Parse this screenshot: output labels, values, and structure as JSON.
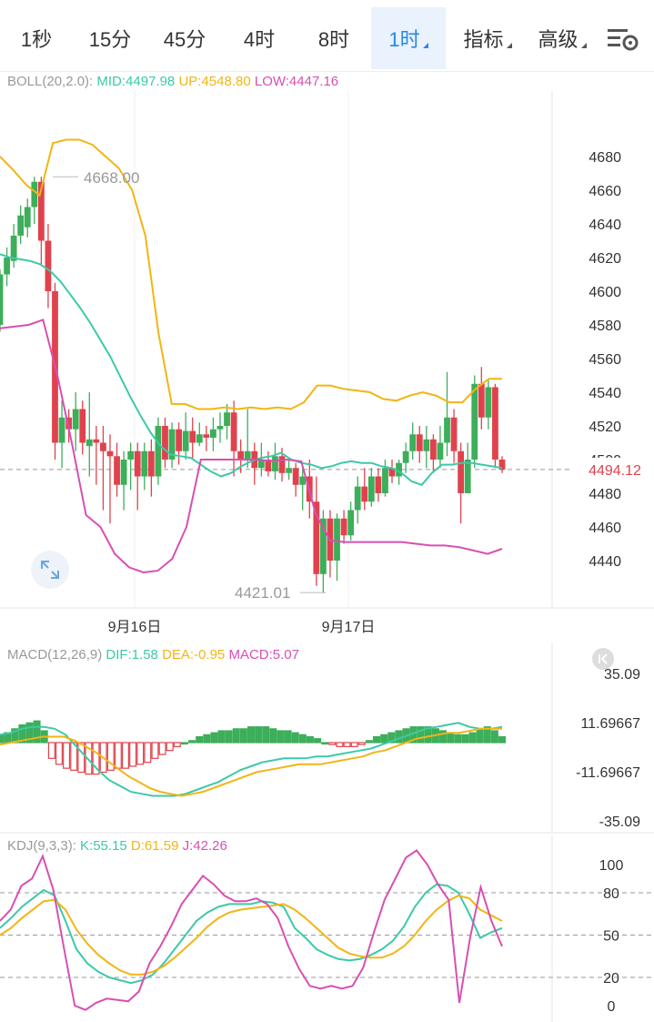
{
  "tabs": [
    {
      "label": "1秒",
      "active": false,
      "dropdown": false
    },
    {
      "label": "15分",
      "active": false,
      "dropdown": false
    },
    {
      "label": "45分",
      "active": false,
      "dropdown": false
    },
    {
      "label": "4时",
      "active": false,
      "dropdown": false
    },
    {
      "label": "8时",
      "active": false,
      "dropdown": false
    },
    {
      "label": "1时",
      "active": true,
      "dropdown": true
    },
    {
      "label": "指标",
      "active": false,
      "dropdown": true
    },
    {
      "label": "高级",
      "active": false,
      "dropdown": true
    }
  ],
  "icons": {
    "settings": "chart-settings-icon",
    "expand": "expand-icon",
    "collapse": "collapse-left-icon"
  },
  "colors": {
    "up": "#3dae5a",
    "down": "#e0424d",
    "mid": "#3cc9a9",
    "upper": "#f2b515",
    "lower": "#d84fb3",
    "accent": "#2a86e0",
    "last_price": "#e0424d"
  },
  "boll": {
    "name": "BOLL(20,2.0):",
    "mid": "MID:4497.98",
    "up": "UP:4548.80",
    "low": "LOW:4447.16"
  },
  "macd": {
    "name": "MACD(12,26,9)",
    "dif": "DIF:1.58",
    "dea": "DEA:-0.95",
    "macd": "MACD:5.07"
  },
  "kdj": {
    "name": "KDJ(9,3,3):",
    "k": "K:55.15",
    "d": "D:61.59",
    "j": "J:42.26"
  },
  "last_price_label": "4494.12",
  "max_label": "4668.00",
  "min_label": "4421.01",
  "chart_data": [
    {
      "type": "candlestick",
      "title": "BOLL(20,2.0)",
      "x_tick_labels": [
        "9月16日",
        "9月17日"
      ],
      "y_ticks": [
        4440,
        4460,
        4480,
        4500,
        4520,
        4540,
        4560,
        4580,
        4600,
        4620,
        4640,
        4660,
        4680
      ],
      "ylim": [
        4414,
        4705
      ],
      "last_price": 4494.12,
      "annotations": [
        {
          "text": "4668.00",
          "value": 4668.0
        },
        {
          "text": "4421.01",
          "value": 4421.01
        }
      ],
      "candles": [
        [
          4580,
          4610,
          4576,
          4613
        ],
        [
          4610,
          4620,
          4603,
          4626
        ],
        [
          4618,
          4633,
          4614,
          4640
        ],
        [
          4633,
          4645,
          4628,
          4651
        ],
        [
          4638,
          4650,
          4632,
          4655
        ],
        [
          4650,
          4665,
          4640,
          4668
        ],
        [
          4665,
          4630,
          4615,
          4668
        ],
        [
          4630,
          4600,
          4590,
          4640
        ],
        [
          4600,
          4510,
          4500,
          4605
        ],
        [
          4510,
          4525,
          4495,
          4535
        ],
        [
          4525,
          4518,
          4510,
          4530
        ],
        [
          4518,
          4530,
          4505,
          4540
        ],
        [
          4530,
          4510,
          4503,
          4535
        ],
        [
          4508,
          4512,
          4490,
          4540
        ],
        [
          4512,
          4510,
          4485,
          4520
        ],
        [
          4510,
          4505,
          4470,
          4520
        ],
        [
          4505,
          4502,
          4462,
          4515
        ],
        [
          4502,
          4485,
          4478,
          4510
        ],
        [
          4485,
          4500,
          4470,
          4505
        ],
        [
          4500,
          4505,
          4482,
          4510
        ],
        [
          4505,
          4490,
          4470,
          4510
        ],
        [
          4490,
          4505,
          4482,
          4510
        ],
        [
          4505,
          4490,
          4478,
          4512
        ],
        [
          4490,
          4520,
          4485,
          4525
        ],
        [
          4520,
          4500,
          4495,
          4525
        ],
        [
          4500,
          4518,
          4495,
          4522
        ],
        [
          4518,
          4505,
          4497,
          4522
        ],
        [
          4505,
          4517,
          4500,
          4528
        ],
        [
          4517,
          4510,
          4500,
          4525
        ],
        [
          4510,
          4515,
          4508,
          4522
        ],
        [
          4515,
          4513,
          4505,
          4520
        ],
        [
          4513,
          4518,
          4505,
          4525
        ],
        [
          4518,
          4520,
          4510,
          4528
        ],
        [
          4520,
          4528,
          4512,
          4533
        ],
        [
          4528,
          4505,
          4490,
          4535
        ],
        [
          4505,
          4500,
          4492,
          4512
        ],
        [
          4500,
          4505,
          4495,
          4530
        ],
        [
          4505,
          4495,
          4485,
          4510
        ],
        [
          4495,
          4500,
          4490,
          4510
        ],
        [
          4500,
          4493,
          4490,
          4505
        ],
        [
          4493,
          4502,
          4488,
          4510
        ],
        [
          4502,
          4492,
          4487,
          4507
        ],
        [
          4492,
          4495,
          4488,
          4500
        ],
        [
          4495,
          4485,
          4478,
          4498
        ],
        [
          4485,
          4490,
          4470,
          4496
        ],
        [
          4490,
          4475,
          4465,
          4500
        ],
        [
          4475,
          4432,
          4425,
          4490
        ],
        [
          4432,
          4465,
          4421,
          4470
        ],
        [
          4465,
          4440,
          4430,
          4470
        ],
        [
          4440,
          4465,
          4428,
          4468
        ],
        [
          4465,
          4455,
          4450,
          4470
        ],
        [
          4455,
          4470,
          4452,
          4475
        ],
        [
          4470,
          4484,
          4462,
          4490
        ],
        [
          4484,
          4475,
          4470,
          4495
        ],
        [
          4475,
          4490,
          4472,
          4495
        ],
        [
          4490,
          4480,
          4475,
          4495
        ],
        [
          4480,
          4495,
          4478,
          4500
        ],
        [
          4495,
          4490,
          4486,
          4500
        ],
        [
          4490,
          4498,
          4485,
          4500
        ],
        [
          4498,
          4505,
          4492,
          4510
        ],
        [
          4505,
          4515,
          4500,
          4522
        ],
        [
          4515,
          4505,
          4498,
          4520
        ],
        [
          4505,
          4512,
          4495,
          4520
        ],
        [
          4512,
          4500,
          4492,
          4515
        ],
        [
          4500,
          4510,
          4495,
          4520
        ],
        [
          4510,
          4525,
          4502,
          4552
        ],
        [
          4525,
          4505,
          4498,
          4530
        ],
        [
          4505,
          4480,
          4462,
          4510
        ],
        [
          4480,
          4500,
          4480,
          4510
        ],
        [
          4500,
          4545,
          4495,
          4550
        ],
        [
          4545,
          4525,
          4518,
          4555
        ],
        [
          4525,
          4543,
          4518,
          4548
        ],
        [
          4543,
          4500,
          4495,
          4545
        ],
        [
          4500,
          4494,
          4492,
          4502
        ]
      ],
      "series": [
        {
          "name": "MID",
          "values": [
            4622,
            4620,
            4619,
            4618,
            4616,
            4612,
            4606,
            4598,
            4590,
            4581,
            4571,
            4561,
            4549,
            4537,
            4526,
            4516,
            4508,
            4503,
            4502,
            4501,
            4497,
            4493,
            4490,
            4492,
            4496,
            4499,
            4501,
            4502,
            4504,
            4500,
            4498,
            4497,
            4495,
            4496,
            4498,
            4499,
            4498,
            4498,
            4496,
            4495,
            4492,
            4487,
            4485,
            4492,
            4497,
            4497,
            4498,
            4498,
            4497,
            4496,
            4495
          ]
        },
        {
          "name": "UP",
          "values": [
            4680,
            4672,
            4663,
            4657,
            4688,
            4690,
            4690,
            4687,
            4680,
            4673,
            4660,
            4633,
            4575,
            4533,
            4533,
            4530,
            4530,
            4531,
            4530,
            4531,
            4530,
            4531,
            4530,
            4534,
            4544,
            4544,
            4542,
            4541,
            4540,
            4536,
            4535,
            4538,
            4540,
            4538,
            4534,
            4534,
            4542,
            4548,
            4548
          ]
        },
        {
          "name": "LOW",
          "values": [
            4578,
            4579,
            4580,
            4583,
            4550,
            4510,
            4467,
            4460,
            4444,
            4436,
            4433,
            4434,
            4441,
            4460,
            4500,
            4500,
            4500,
            4500,
            4500,
            4499,
            4500,
            4499,
            4468,
            4452,
            4451,
            4451,
            4451,
            4451,
            4451,
            4450,
            4449,
            4449,
            4448,
            4446,
            4444,
            4447
          ]
        }
      ]
    },
    {
      "type": "bar",
      "title": "MACD(12,26,9)",
      "y_ticks": [
        35.09,
        11.69667,
        -11.69667,
        -35.09
      ],
      "ylim": [
        -35.09,
        35.09
      ],
      "histogram": [
        4,
        5,
        7,
        9,
        10,
        11,
        6,
        -8,
        -11,
        -13,
        -14,
        -15,
        -16,
        -16,
        -15,
        -14,
        -13,
        -13,
        -12,
        -11,
        -10,
        -8,
        -6,
        -4,
        -2,
        0,
        1,
        3,
        4,
        5,
        6,
        6,
        7,
        7,
        8,
        8,
        8,
        7,
        6,
        6,
        5,
        4,
        3,
        2,
        0,
        -1,
        -2,
        -2,
        -2,
        -1,
        1,
        3,
        4,
        5,
        6,
        7,
        8,
        8,
        8,
        7,
        6,
        5,
        4,
        4,
        5,
        7,
        8,
        6,
        3
      ],
      "series": [
        {
          "name": "DIF",
          "values": [
            4,
            5,
            7,
            8,
            8,
            7,
            4,
            -2,
            -8,
            -14,
            -19,
            -22,
            -25,
            -26,
            -27,
            -27,
            -27,
            -26,
            -24,
            -22,
            -20,
            -17,
            -14,
            -12,
            -10,
            -9,
            -8,
            -8,
            -8,
            -7,
            -7,
            -6,
            -5,
            -4,
            -3,
            -1,
            1,
            3,
            5,
            7,
            8,
            9,
            10,
            8,
            7,
            7,
            8
          ]
        },
        {
          "name": "DEA",
          "values": [
            -1,
            0,
            1,
            2,
            3,
            3,
            3,
            1,
            -2,
            -5,
            -9,
            -13,
            -17,
            -20,
            -23,
            -25,
            -26,
            -27,
            -26,
            -25,
            -23,
            -21,
            -19,
            -17,
            -15,
            -14,
            -13,
            -12,
            -11,
            -11,
            -11,
            -10,
            -9,
            -8,
            -7,
            -5,
            -4,
            -2,
            0,
            2,
            3,
            4,
            5,
            5,
            6,
            7,
            7,
            7
          ]
        }
      ]
    },
    {
      "type": "line",
      "title": "KDJ(9,3,3)",
      "y_ticks": [
        100,
        80,
        50,
        20,
        0
      ],
      "ylim": [
        -5,
        112
      ],
      "series": [
        {
          "name": "K",
          "values": [
            55,
            62,
            70,
            76,
            82,
            78,
            60,
            40,
            30,
            24,
            20,
            18,
            16,
            18,
            22,
            30,
            40,
            50,
            60,
            66,
            70,
            72,
            72,
            72,
            74,
            73,
            70,
            55,
            48,
            40,
            36,
            33,
            32,
            33,
            36,
            40,
            46,
            56,
            70,
            80,
            86,
            85,
            80,
            65,
            48,
            52,
            55
          ]
        },
        {
          "name": "D",
          "values": [
            50,
            55,
            62,
            68,
            74,
            75,
            68,
            54,
            44,
            36,
            30,
            25,
            22,
            22,
            24,
            28,
            34,
            41,
            48,
            56,
            62,
            66,
            68,
            69,
            70,
            71,
            72,
            68,
            62,
            55,
            48,
            41,
            37,
            35,
            34,
            34,
            37,
            42,
            50,
            60,
            68,
            74,
            78,
            76,
            68,
            64,
            60
          ]
        },
        {
          "name": "J",
          "values": [
            60,
            68,
            85,
            90,
            106,
            82,
            40,
            0,
            -3,
            2,
            5,
            4,
            3,
            10,
            30,
            42,
            56,
            72,
            82,
            92,
            86,
            78,
            74,
            74,
            76,
            72,
            62,
            42,
            26,
            14,
            12,
            14,
            12,
            14,
            27,
            52,
            75,
            90,
            105,
            110,
            100,
            86,
            75,
            2,
            48,
            84,
            60,
            42
          ]
        }
      ]
    }
  ]
}
